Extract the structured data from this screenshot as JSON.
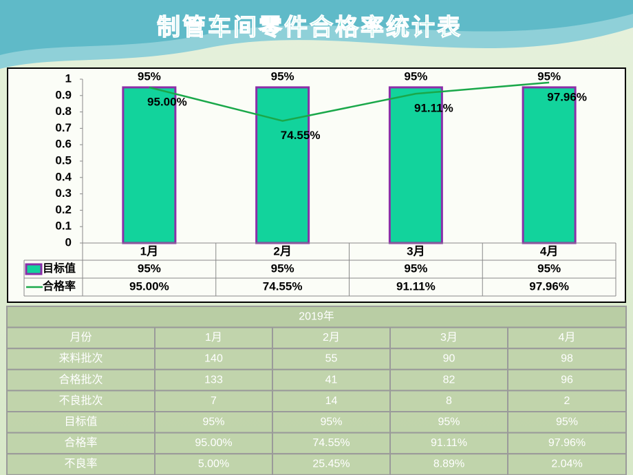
{
  "chart_data": {
    "type": "bar",
    "title": "制管车间零件合格率统计表",
    "categories": [
      "1月",
      "2月",
      "3月",
      "4月"
    ],
    "series": [
      {
        "name": "目标值",
        "type": "bar",
        "color": "#12d39c",
        "edge_color": "#8b2fa8",
        "values": [
          0.95,
          0.95,
          0.95,
          0.95
        ],
        "value_labels": [
          "95%",
          "95%",
          "95%",
          "95%"
        ]
      },
      {
        "name": "合格率",
        "type": "line",
        "color": "#1aa84a",
        "values": [
          0.95,
          0.7455,
          0.9111,
          0.9796
        ],
        "value_labels": [
          "95.00%",
          "74.55%",
          "91.11%",
          "97.96%"
        ]
      }
    ],
    "ylim": [
      0,
      1
    ],
    "yticks": [
      0,
      0.1,
      0.2,
      0.3,
      0.4,
      0.5,
      0.6,
      0.7,
      0.8,
      0.9,
      1
    ],
    "grid": false
  },
  "table": {
    "caption": "2019年",
    "rows": [
      [
        "月份",
        "1月",
        "2月",
        "3月",
        "4月"
      ],
      [
        "来料批次",
        "140",
        "55",
        "90",
        "98"
      ],
      [
        "合格批次",
        "133",
        "41",
        "82",
        "96"
      ],
      [
        "不良批次",
        "7",
        "14",
        "8",
        "2"
      ],
      [
        "目标值",
        "95%",
        "95%",
        "95%",
        "95%"
      ],
      [
        "合格率",
        "95.00%",
        "74.55%",
        "91.11%",
        "97.96%"
      ],
      [
        "不良率",
        "5.00%",
        "25.45%",
        "8.89%",
        "2.04%"
      ]
    ]
  }
}
